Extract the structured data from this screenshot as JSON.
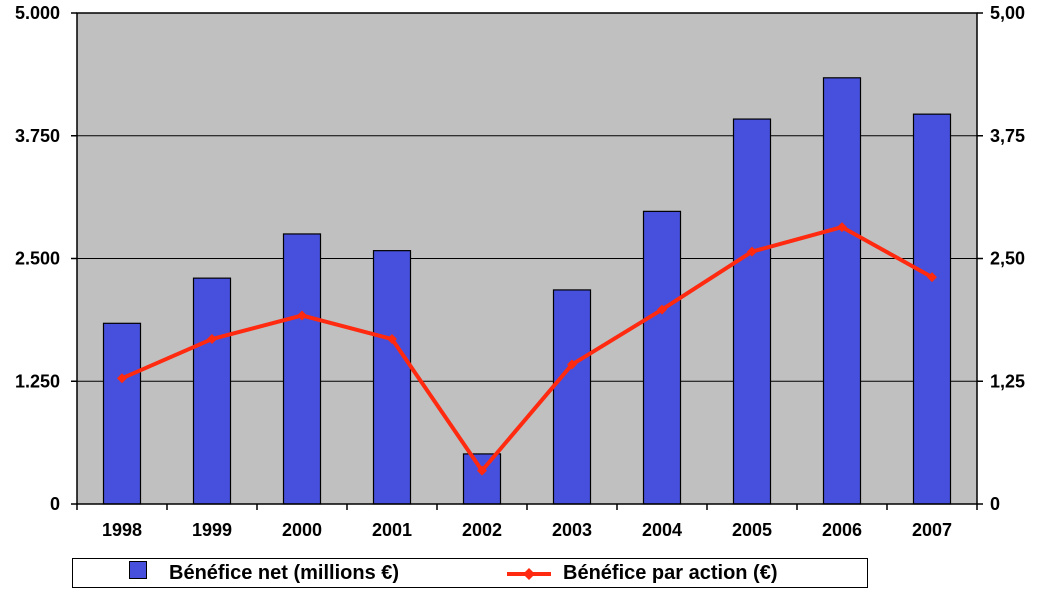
{
  "chart_data": {
    "type": "bar+line",
    "categories": [
      "1998",
      "1999",
      "2000",
      "2001",
      "2002",
      "2003",
      "2004",
      "2005",
      "2006",
      "2007"
    ],
    "series": [
      {
        "name": "Bénéfice net (millions €)",
        "type": "bar",
        "axis": "left",
        "color": "#4650DC",
        "values": [
          1840,
          2300,
          2750,
          2580,
          510,
          2180,
          2980,
          3920,
          4340,
          3970
        ]
      },
      {
        "name": "Bénéfice par action (€)",
        "type": "line",
        "axis": "right",
        "color": "#FF2A0F",
        "values": [
          1.28,
          1.68,
          1.92,
          1.68,
          0.34,
          1.42,
          1.98,
          2.57,
          2.82,
          2.31
        ]
      }
    ],
    "yleft": {
      "min": 0,
      "max": 5000,
      "ticks": [
        "0",
        "1.250",
        "2.500",
        "3.750",
        "5.000"
      ]
    },
    "yright": {
      "min": 0,
      "max": 5,
      "ticks": [
        "0",
        "1,25",
        "2,50",
        "3,75",
        "5,00"
      ]
    },
    "grid": true,
    "plot_background": "#C0C0C0",
    "legend_position": "bottom"
  }
}
